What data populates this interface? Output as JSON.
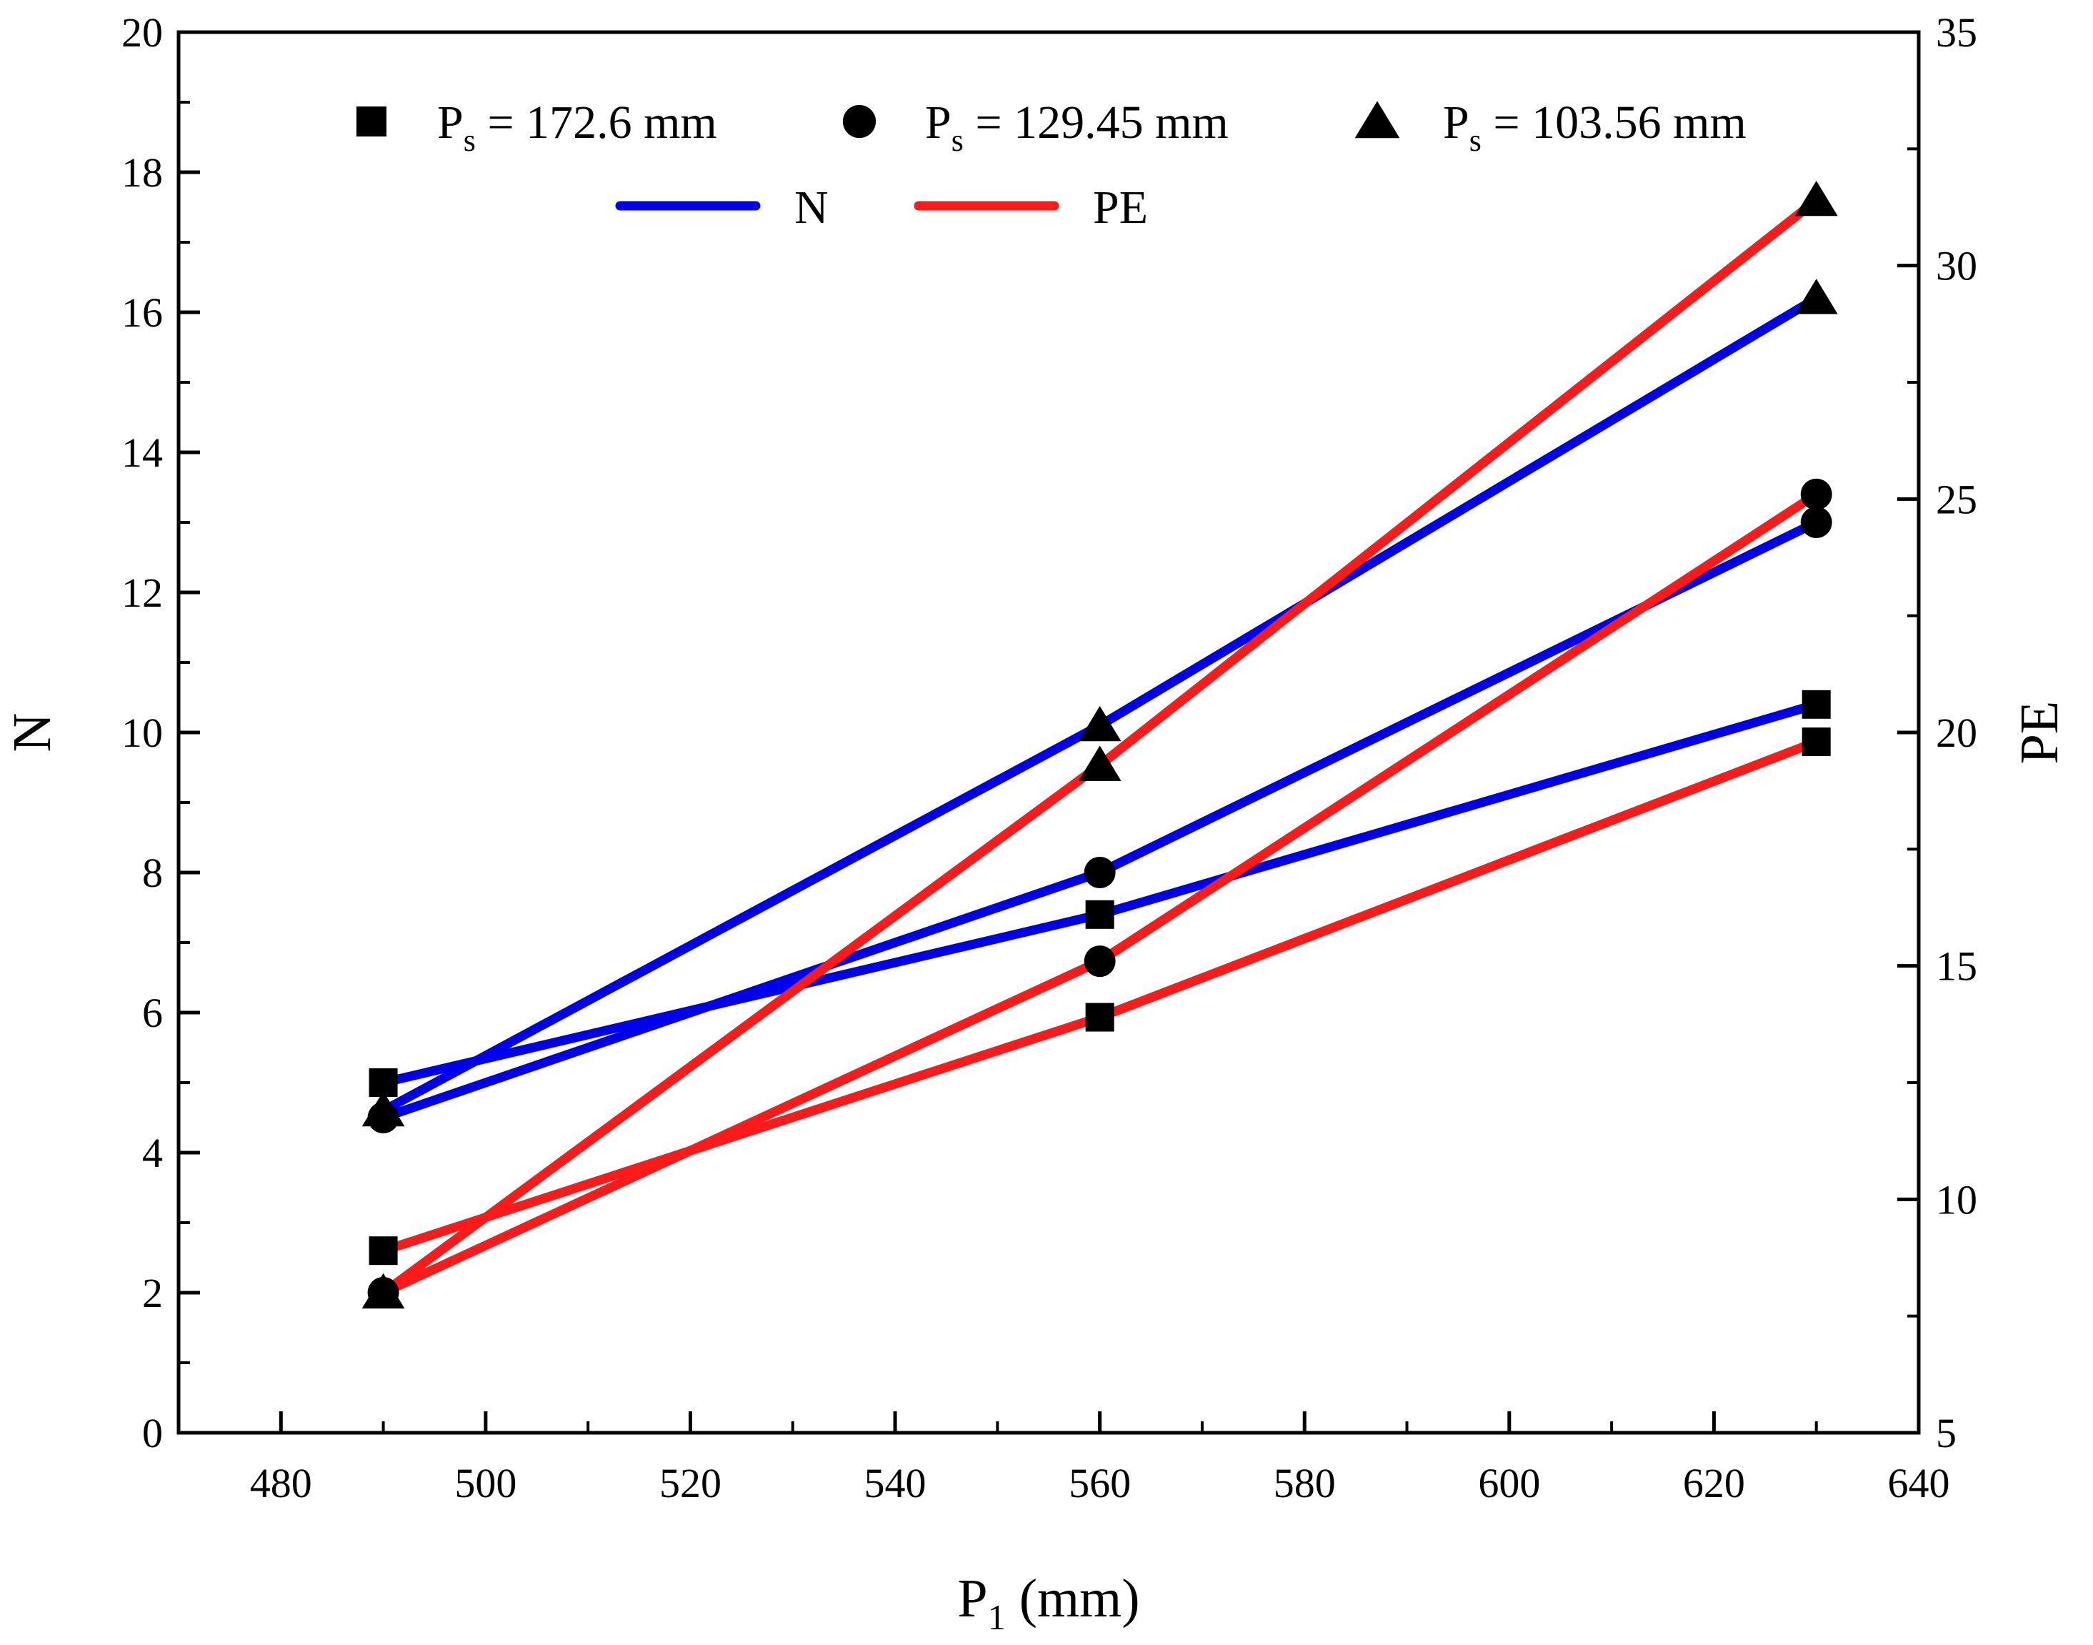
{
  "chart_data": {
    "type": "line",
    "x_label": {
      "main": "P",
      "sub": "1",
      "suffix": " (mm)"
    },
    "y_label_left": "N",
    "y_label_right": "PE",
    "xlim": [
      470,
      640
    ],
    "ylim_left": [
      0,
      20
    ],
    "ylim_right": [
      5,
      35
    ],
    "x_ticks": [
      480,
      500,
      520,
      540,
      560,
      580,
      600,
      620,
      640
    ],
    "y_ticks_left": [
      0,
      2,
      4,
      6,
      8,
      10,
      12,
      14,
      16,
      18,
      20
    ],
    "y_ticks_right": [
      5,
      10,
      15,
      20,
      25,
      30,
      35
    ],
    "x": [
      490,
      560,
      630
    ],
    "groups": [
      {
        "marker": "square",
        "legend": {
          "main": "P",
          "sub": "s",
          "suffix": " = 172.6 mm"
        },
        "N": [
          5.0,
          7.4,
          10.4
        ],
        "PE": [
          8.9,
          13.9,
          19.8
        ]
      },
      {
        "marker": "circle",
        "legend": {
          "main": "P",
          "sub": "s",
          "suffix": " = 129.45 mm"
        },
        "N": [
          4.5,
          8.0,
          13.0
        ],
        "PE": [
          8.0,
          15.1,
          25.1
        ]
      },
      {
        "marker": "triangle",
        "legend": {
          "main": "P",
          "sub": "s",
          "suffix": " = 103.56 mm"
        },
        "N": [
          4.6,
          10.1,
          16.2
        ],
        "PE": [
          8.0,
          19.3,
          31.4
        ]
      }
    ],
    "line_legend": [
      {
        "key": "N",
        "label": "N",
        "color": "#0000ee"
      },
      {
        "key": "PE",
        "label": "PE",
        "color": "#ff1a1a"
      }
    ],
    "grid": false,
    "legend_position": "top"
  }
}
